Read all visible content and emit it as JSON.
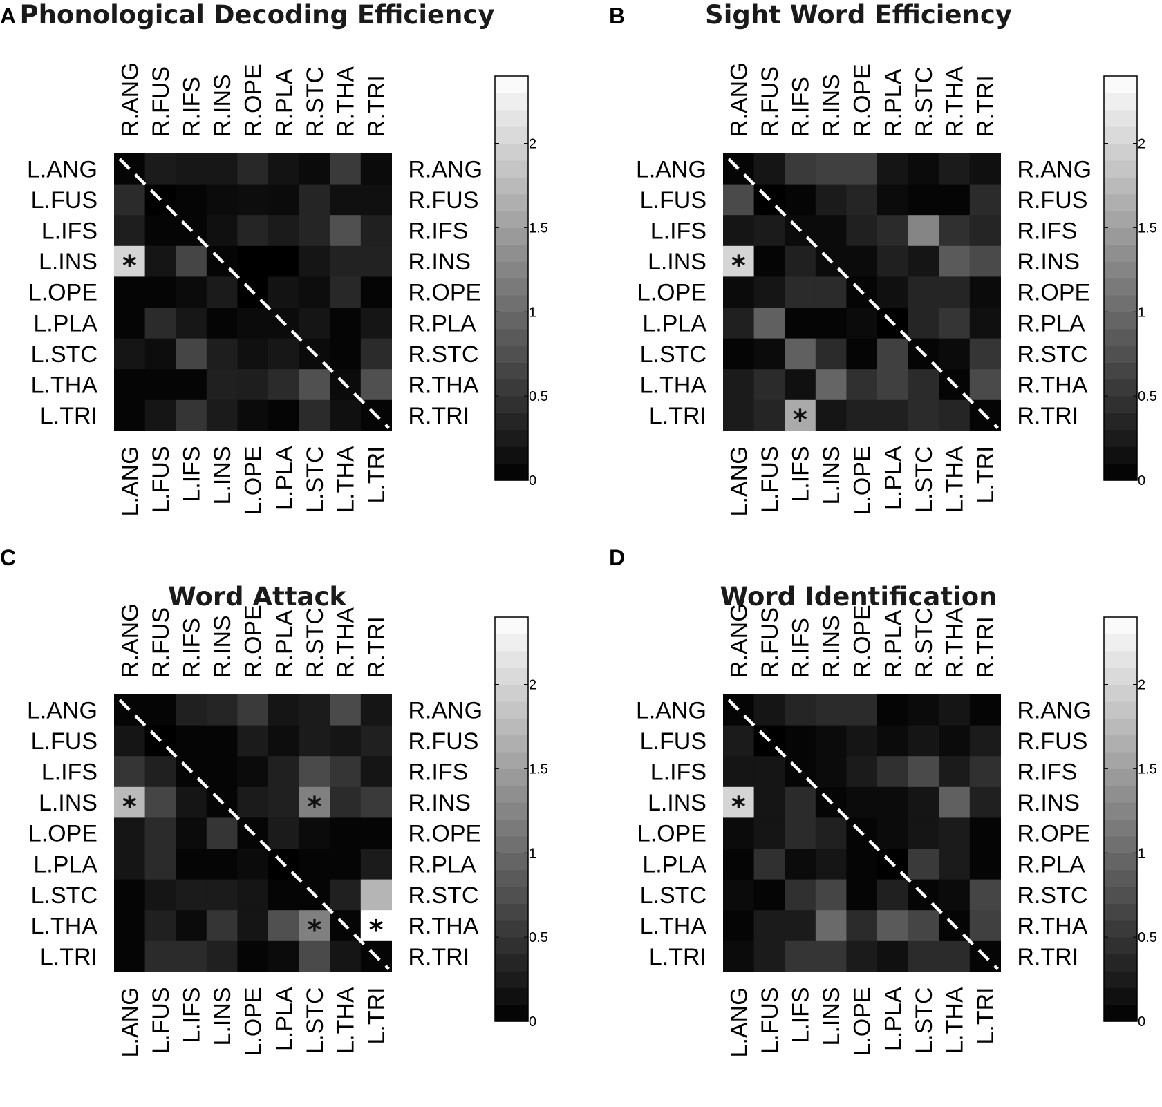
{
  "chart_data": [
    {
      "type": "heatmap",
      "panel_letter": "A",
      "title": "Phonological Decoding Efficiency",
      "rows": [
        "L.ANG",
        "L.FUS",
        "L.IFS",
        "L.INS",
        "L.OPE",
        "L.PLA",
        "L.STC",
        "L.THA",
        "L.TRI"
      ],
      "cols_bottom": [
        "L.ANG",
        "L.FUS",
        "L.IFS",
        "L.INS",
        "L.OPE",
        "L.PLA",
        "L.STC",
        "L.THA",
        "L.TRI"
      ],
      "cols_top": [
        "R.ANG",
        "R.FUS",
        "R.IFS",
        "R.INS",
        "R.OPE",
        "R.PLA",
        "R.STC",
        "R.THA",
        "R.TRI"
      ],
      "rows_right": [
        "R.ANG",
        "R.FUS",
        "R.IFS",
        "R.INS",
        "R.OPE",
        "R.PLA",
        "R.STC",
        "R.THA",
        "R.TRI"
      ],
      "values": [
        [
          0.05,
          0.25,
          0.22,
          0.22,
          0.38,
          0.18,
          0.1,
          0.55,
          0.1
        ],
        [
          0.4,
          0.0,
          0.05,
          0.1,
          0.12,
          0.1,
          0.35,
          0.15,
          0.15
        ],
        [
          0.28,
          0.05,
          0.05,
          0.15,
          0.35,
          0.25,
          0.35,
          0.75,
          0.3
        ],
        [
          2.0,
          0.2,
          0.65,
          0.05,
          0.0,
          0.0,
          0.2,
          0.32,
          0.32
        ],
        [
          0.05,
          0.05,
          0.1,
          0.25,
          0.0,
          0.18,
          0.12,
          0.38,
          0.05
        ],
        [
          0.05,
          0.4,
          0.22,
          0.05,
          0.1,
          0.1,
          0.2,
          0.05,
          0.2
        ],
        [
          0.2,
          0.12,
          0.65,
          0.28,
          0.15,
          0.22,
          0.1,
          0.05,
          0.4
        ],
        [
          0.05,
          0.05,
          0.05,
          0.3,
          0.28,
          0.4,
          0.75,
          0.1,
          0.75
        ],
        [
          0.05,
          0.2,
          0.5,
          0.25,
          0.1,
          0.05,
          0.4,
          0.15,
          0.05
        ]
      ],
      "significant": [
        [
          3,
          0
        ]
      ],
      "colorbar": {
        "min": 0,
        "max": 2.4,
        "ticks": [
          "0",
          "0.5",
          "1",
          "1.5",
          "2"
        ]
      }
    },
    {
      "type": "heatmap",
      "panel_letter": "B",
      "title": "Sight Word Efficiency",
      "rows": [
        "L.ANG",
        "L.FUS",
        "L.IFS",
        "L.INS",
        "L.OPE",
        "L.PLA",
        "L.STC",
        "L.THA",
        "L.TRI"
      ],
      "cols_bottom": [
        "L.ANG",
        "L.FUS",
        "L.IFS",
        "L.INS",
        "L.OPE",
        "L.PLA",
        "L.STC",
        "L.THA",
        "L.TRI"
      ],
      "cols_top": [
        "R.ANG",
        "R.FUS",
        "R.IFS",
        "R.INS",
        "R.OPE",
        "R.PLA",
        "R.STC",
        "R.THA",
        "R.TRI"
      ],
      "rows_right": [
        "R.ANG",
        "R.FUS",
        "R.IFS",
        "R.INS",
        "R.OPE",
        "R.PLA",
        "R.STC",
        "R.THA",
        "R.TRI"
      ],
      "values": [
        [
          0.05,
          0.2,
          0.55,
          0.6,
          0.6,
          0.2,
          0.1,
          0.25,
          0.15
        ],
        [
          0.7,
          0.0,
          0.05,
          0.25,
          0.35,
          0.1,
          0.05,
          0.05,
          0.4
        ],
        [
          0.2,
          0.25,
          0.1,
          0.1,
          0.3,
          0.4,
          1.25,
          0.45,
          0.35
        ],
        [
          2.0,
          0.05,
          0.3,
          0.1,
          0.1,
          0.3,
          0.2,
          0.85,
          0.7
        ],
        [
          0.1,
          0.2,
          0.4,
          0.4,
          0.05,
          0.15,
          0.35,
          0.35,
          0.1
        ],
        [
          0.3,
          0.9,
          0.05,
          0.05,
          0.1,
          0.0,
          0.35,
          0.5,
          0.15
        ],
        [
          0.05,
          0.1,
          0.9,
          0.4,
          0.05,
          0.6,
          0.05,
          0.1,
          0.5
        ],
        [
          0.25,
          0.4,
          0.15,
          0.95,
          0.45,
          0.6,
          0.4,
          0.05,
          0.7
        ],
        [
          0.25,
          0.35,
          1.6,
          0.2,
          0.3,
          0.3,
          0.4,
          0.35,
          0.05
        ]
      ],
      "significant": [
        [
          3,
          0
        ],
        [
          8,
          2
        ]
      ],
      "colorbar": {
        "min": 0,
        "max": 2.4,
        "ticks": [
          "0",
          "0.5",
          "1",
          "1.5",
          "2"
        ]
      }
    },
    {
      "type": "heatmap",
      "panel_letter": "C",
      "title": "Word Attack",
      "rows": [
        "L.ANG",
        "L.FUS",
        "L.IFS",
        "L.INS",
        "L.OPE",
        "L.PLA",
        "L.STC",
        "L.THA",
        "L.TRI"
      ],
      "cols_bottom": [
        "L.ANG",
        "L.FUS",
        "L.IFS",
        "L.INS",
        "L.OPE",
        "L.PLA",
        "L.STC",
        "L.THA",
        "L.TRI"
      ],
      "cols_top": [
        "R.ANG",
        "R.FUS",
        "R.IFS",
        "R.INS",
        "R.OPE",
        "R.PLA",
        "R.STC",
        "R.THA",
        "R.TRI"
      ],
      "rows_right": [
        "R.ANG",
        "R.FUS",
        "R.IFS",
        "R.INS",
        "R.OPE",
        "R.PLA",
        "R.STC",
        "R.THA",
        "R.TRI"
      ],
      "values": [
        [
          0.05,
          0.05,
          0.3,
          0.35,
          0.55,
          0.2,
          0.25,
          0.7,
          0.2
        ],
        [
          0.2,
          0.0,
          0.05,
          0.05,
          0.25,
          0.12,
          0.25,
          0.2,
          0.3
        ],
        [
          0.5,
          0.3,
          0.05,
          0.05,
          0.1,
          0.3,
          0.7,
          0.5,
          0.2
        ],
        [
          1.75,
          0.65,
          0.2,
          0.05,
          0.25,
          0.3,
          1.2,
          0.4,
          0.55
        ],
        [
          0.2,
          0.4,
          0.1,
          0.5,
          0.05,
          0.25,
          0.1,
          0.05,
          0.05
        ],
        [
          0.2,
          0.4,
          0.05,
          0.05,
          0.1,
          0.0,
          0.05,
          0.05,
          0.25
        ],
        [
          0.05,
          0.2,
          0.25,
          0.25,
          0.2,
          0.05,
          0.05,
          0.3,
          1.7
        ],
        [
          0.05,
          0.3,
          0.1,
          0.5,
          0.2,
          0.75,
          1.2,
          0.05,
          2.4
        ],
        [
          0.05,
          0.4,
          0.4,
          0.3,
          0.05,
          0.1,
          0.7,
          0.2,
          0.05
        ]
      ],
      "significant": [
        [
          3,
          0
        ],
        [
          3,
          6
        ],
        [
          7,
          6
        ],
        [
          7,
          8
        ]
      ],
      "colorbar": {
        "min": 0,
        "max": 2.4,
        "ticks": [
          "0",
          "0.5",
          "1",
          "1.5",
          "2"
        ]
      }
    },
    {
      "type": "heatmap",
      "panel_letter": "D",
      "title": "Word Identification",
      "rows": [
        "L.ANG",
        "L.FUS",
        "L.IFS",
        "L.INS",
        "L.OPE",
        "L.PLA",
        "L.STC",
        "L.THA",
        "L.TRI"
      ],
      "cols_bottom": [
        "L.ANG",
        "L.FUS",
        "L.IFS",
        "L.INS",
        "L.OPE",
        "L.PLA",
        "L.STC",
        "L.THA",
        "L.TRI"
      ],
      "cols_top": [
        "R.ANG",
        "R.FUS",
        "R.IFS",
        "R.INS",
        "R.OPE",
        "R.PLA",
        "R.STC",
        "R.THA",
        "R.TRI"
      ],
      "rows_right": [
        "R.ANG",
        "R.FUS",
        "R.IFS",
        "R.INS",
        "R.OPE",
        "R.PLA",
        "R.STC",
        "R.THA",
        "R.TRI"
      ],
      "values": [
        [
          0.05,
          0.2,
          0.35,
          0.4,
          0.4,
          0.05,
          0.1,
          0.2,
          0.05
        ],
        [
          0.25,
          0.0,
          0.05,
          0.1,
          0.2,
          0.1,
          0.2,
          0.1,
          0.25
        ],
        [
          0.2,
          0.2,
          0.05,
          0.1,
          0.25,
          0.45,
          0.7,
          0.25,
          0.45
        ],
        [
          2.0,
          0.2,
          0.4,
          0.05,
          0.1,
          0.1,
          0.2,
          0.9,
          0.3
        ],
        [
          0.1,
          0.2,
          0.4,
          0.3,
          0.05,
          0.1,
          0.2,
          0.25,
          0.05
        ],
        [
          0.05,
          0.45,
          0.1,
          0.2,
          0.05,
          0.0,
          0.55,
          0.25,
          0.05
        ],
        [
          0.1,
          0.05,
          0.45,
          0.65,
          0.05,
          0.3,
          0.05,
          0.1,
          0.65
        ],
        [
          0.05,
          0.25,
          0.25,
          1.0,
          0.4,
          0.85,
          0.65,
          0.05,
          0.6
        ],
        [
          0.1,
          0.25,
          0.5,
          0.5,
          0.25,
          0.15,
          0.4,
          0.4,
          0.05
        ]
      ],
      "significant": [
        [
          3,
          0
        ]
      ],
      "colorbar": {
        "min": 0,
        "max": 2.4,
        "ticks": [
          "0",
          "0.5",
          "1",
          "1.5",
          "2"
        ]
      }
    }
  ]
}
